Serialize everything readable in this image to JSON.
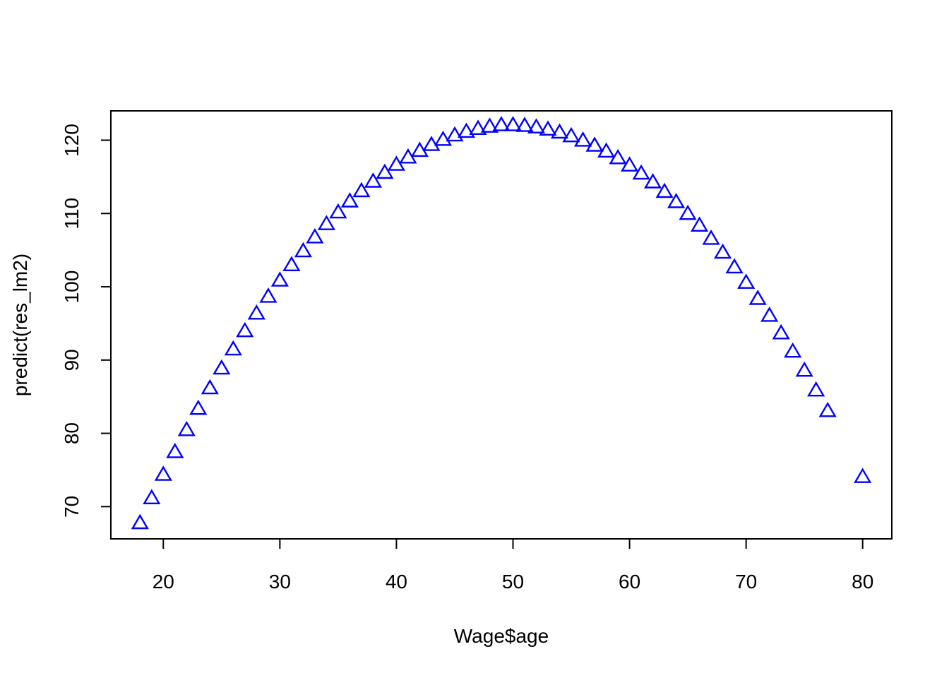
{
  "chart_data": {
    "type": "scatter",
    "title": "",
    "xlabel": "Wage$age",
    "ylabel": "predict(res_lm2)",
    "xlim": [
      15.5,
      82.5
    ],
    "ylim": [
      65.6,
      124.0
    ],
    "xticks": [
      20,
      30,
      40,
      50,
      60,
      70,
      80
    ],
    "yticks": [
      70,
      80,
      90,
      100,
      110,
      120
    ],
    "grid": false,
    "marker": "open-triangle",
    "marker_color": "#0000ff",
    "x": [
      18,
      19,
      20,
      21,
      22,
      23,
      24,
      25,
      26,
      27,
      28,
      29,
      30,
      31,
      32,
      33,
      34,
      35,
      36,
      37,
      38,
      39,
      40,
      41,
      42,
      43,
      44,
      45,
      46,
      47,
      48,
      49,
      50,
      51,
      52,
      53,
      54,
      55,
      56,
      57,
      58,
      59,
      60,
      61,
      62,
      63,
      64,
      65,
      66,
      67,
      68,
      69,
      70,
      71,
      72,
      73,
      74,
      75,
      76,
      77,
      80
    ],
    "y": [
      67.7,
      71.1,
      74.3,
      77.4,
      80.4,
      83.3,
      86.1,
      88.8,
      91.4,
      93.9,
      96.3,
      98.6,
      100.8,
      102.9,
      104.8,
      106.7,
      108.5,
      110.1,
      111.6,
      113.0,
      114.3,
      115.5,
      116.6,
      117.6,
      118.5,
      119.3,
      120.0,
      120.6,
      121.1,
      121.5,
      121.8,
      122.0,
      122.0,
      121.9,
      121.7,
      121.4,
      121.0,
      120.5,
      119.9,
      119.2,
      118.4,
      117.5,
      116.5,
      115.4,
      114.2,
      112.9,
      111.5,
      109.9,
      108.3,
      106.5,
      104.6,
      102.6,
      100.5,
      98.3,
      96.0,
      93.6,
      91.1,
      88.5,
      85.8,
      83.0,
      74.0
    ]
  }
}
